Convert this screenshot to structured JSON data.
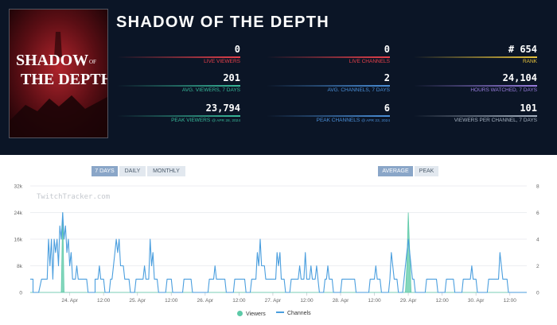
{
  "game": {
    "title": "SHADOW OF THE DEPTH",
    "cover": {
      "line1": "SHADOW",
      "of": "OF",
      "line2": "THE DEPTH"
    }
  },
  "stats": [
    {
      "value": "0",
      "label": "LIVE VIEWERS",
      "sub": "",
      "color": "#e8404a"
    },
    {
      "value": "0",
      "label": "LIVE CHANNELS",
      "sub": "",
      "color": "#e8404a"
    },
    {
      "value": "# 654",
      "label": "RANK",
      "sub": "",
      "color": "#e8c33c"
    },
    {
      "value": "201",
      "label": "AVG. VIEWERS, 7 DAYS",
      "sub": "",
      "color": "#38b99a"
    },
    {
      "value": "2",
      "label": "AVG. CHANNELS, 7 DAYS",
      "sub": "",
      "color": "#4a8fd8"
    },
    {
      "value": "24,104",
      "label": "HOURS WATCHED, 7 DAYS",
      "sub": "",
      "color": "#9a7ee0"
    },
    {
      "value": "23,794",
      "label": "PEAK VIEWERS",
      "sub": "@ APR 28, 2024",
      "color": "#38b99a"
    },
    {
      "value": "6",
      "label": "PEAK CHANNELS",
      "sub": "@ APR 23, 2024",
      "color": "#4a8fd8"
    },
    {
      "value": "101",
      "label": "VIEWERS PER CHANNEL, 7 DAYS",
      "sub": "",
      "color": "#a7b3c2"
    }
  ],
  "controls": {
    "range": [
      "7 DAYS",
      "DAILY",
      "MONTHLY"
    ],
    "range_active": "7 DAYS",
    "mode": [
      "AVERAGE",
      "PEAK"
    ],
    "mode_active": "AVERAGE"
  },
  "chart_data": {
    "type": "line",
    "watermark": "TwitchTracker.com",
    "x_ticks": [
      "24. Apr",
      "12:00",
      "25. Apr",
      "12:00",
      "26. Apr",
      "12:00",
      "27. Apr",
      "12:00",
      "28. Apr",
      "12:00",
      "29. Apr",
      "12:00",
      "30. Apr",
      "12:00"
    ],
    "x_tick_hours": [
      24,
      36,
      48,
      60,
      72,
      84,
      96,
      108,
      120,
      132,
      144,
      156,
      168,
      180
    ],
    "x_range_hours": [
      10,
      186
    ],
    "y_left": {
      "ticks": [
        "0",
        "8k",
        "16k",
        "24k",
        "32k"
      ],
      "range": [
        0,
        32000
      ]
    },
    "y_right": {
      "ticks": [
        "0",
        "2",
        "4",
        "6",
        "8"
      ],
      "range": [
        0,
        8
      ]
    },
    "series": [
      {
        "name": "Viewers",
        "color": "#5cc9a7",
        "points": [
          [
            10,
            0
          ],
          [
            21,
            0
          ],
          [
            21.5,
            24000
          ],
          [
            22,
            0
          ],
          [
            75,
            0
          ],
          [
            105,
            0
          ],
          [
            135,
            0
          ],
          [
            143,
            0
          ],
          [
            143.5,
            8000
          ],
          [
            144,
            24000
          ],
          [
            144.5,
            12000
          ],
          [
            145,
            0
          ],
          [
            186,
            0
          ]
        ]
      },
      {
        "name": "Channels",
        "color": "#4a9ede",
        "points": [
          [
            10,
            1
          ],
          [
            11,
            1
          ],
          [
            11,
            0
          ],
          [
            13,
            0
          ],
          [
            14,
            1
          ],
          [
            16,
            1
          ],
          [
            16.5,
            4
          ],
          [
            17,
            2
          ],
          [
            17.5,
            4
          ],
          [
            18,
            1
          ],
          [
            18.5,
            4
          ],
          [
            19,
            3
          ],
          [
            19.5,
            4
          ],
          [
            20,
            2
          ],
          [
            20.5,
            5
          ],
          [
            21,
            4
          ],
          [
            21.5,
            6
          ],
          [
            22,
            4
          ],
          [
            22.5,
            5
          ],
          [
            23,
            3
          ],
          [
            23.5,
            4
          ],
          [
            24,
            2
          ],
          [
            24.5,
            3
          ],
          [
            25,
            1
          ],
          [
            26,
            1
          ],
          [
            26.5,
            2
          ],
          [
            27,
            1
          ],
          [
            30,
            1
          ],
          [
            30.5,
            0
          ],
          [
            33,
            0
          ],
          [
            33,
            1
          ],
          [
            34,
            1
          ],
          [
            34.5,
            2
          ],
          [
            35,
            1
          ],
          [
            36,
            1
          ],
          [
            36.5,
            0
          ],
          [
            38,
            0
          ],
          [
            38.5,
            1
          ],
          [
            39,
            1
          ],
          [
            40,
            3
          ],
          [
            40.5,
            4
          ],
          [
            41,
            3
          ],
          [
            41.5,
            4
          ],
          [
            42,
            2
          ],
          [
            43,
            2
          ],
          [
            43.5,
            1
          ],
          [
            45,
            1
          ],
          [
            45.5,
            0
          ],
          [
            47,
            0
          ],
          [
            47.5,
            1
          ],
          [
            50,
            1
          ],
          [
            50.5,
            2
          ],
          [
            51,
            1
          ],
          [
            52,
            1
          ],
          [
            52.5,
            4
          ],
          [
            53,
            2
          ],
          [
            53.5,
            3
          ],
          [
            54,
            1
          ],
          [
            55,
            1
          ],
          [
            55.5,
            0
          ],
          [
            58,
            0
          ],
          [
            58.5,
            1
          ],
          [
            60,
            1
          ],
          [
            60.5,
            0
          ],
          [
            64,
            0
          ],
          [
            64.5,
            1
          ],
          [
            67,
            1
          ],
          [
            67.5,
            0
          ],
          [
            73,
            0
          ],
          [
            73.5,
            1
          ],
          [
            75,
            1
          ],
          [
            75.5,
            2
          ],
          [
            76,
            1
          ],
          [
            79,
            1
          ],
          [
            79.5,
            0
          ],
          [
            82,
            0
          ],
          [
            82.5,
            1
          ],
          [
            86,
            1
          ],
          [
            86.5,
            0
          ],
          [
            88,
            0
          ],
          [
            88.5,
            1
          ],
          [
            90,
            1
          ],
          [
            90.5,
            3
          ],
          [
            91,
            2
          ],
          [
            91.5,
            4
          ],
          [
            92,
            2
          ],
          [
            93,
            2
          ],
          [
            93.5,
            1
          ],
          [
            97,
            1
          ],
          [
            97.5,
            3
          ],
          [
            98,
            2
          ],
          [
            98.5,
            3
          ],
          [
            99,
            1
          ],
          [
            100,
            1
          ],
          [
            100.5,
            0
          ],
          [
            102,
            0
          ],
          [
            102.5,
            1
          ],
          [
            105,
            1
          ],
          [
            105.5,
            2
          ],
          [
            106,
            1
          ],
          [
            107,
            1
          ],
          [
            107.5,
            3
          ],
          [
            108,
            1
          ],
          [
            109,
            1
          ],
          [
            109.5,
            2
          ],
          [
            110,
            1
          ],
          [
            111,
            1
          ],
          [
            111.5,
            2
          ],
          [
            112,
            1
          ],
          [
            112.5,
            0
          ],
          [
            114,
            0
          ],
          [
            114.5,
            1
          ],
          [
            115,
            1
          ],
          [
            115.5,
            2
          ],
          [
            116,
            1
          ],
          [
            117,
            1
          ],
          [
            117.5,
            0
          ],
          [
            120,
            0
          ],
          [
            120.5,
            1
          ],
          [
            125,
            1
          ],
          [
            125.5,
            0
          ],
          [
            130,
            0
          ],
          [
            130.5,
            1
          ],
          [
            132,
            1
          ],
          [
            132.5,
            2
          ],
          [
            133,
            1
          ],
          [
            134,
            1
          ],
          [
            134.5,
            0
          ],
          [
            137,
            0
          ],
          [
            137.5,
            1
          ],
          [
            138,
            3
          ],
          [
            138.5,
            2
          ],
          [
            139,
            1
          ],
          [
            140,
            1
          ],
          [
            140.5,
            0
          ],
          [
            142,
            0
          ],
          [
            142.5,
            1
          ],
          [
            143,
            2
          ],
          [
            143.5,
            3
          ],
          [
            144,
            4
          ],
          [
            144.5,
            3
          ],
          [
            145,
            2
          ],
          [
            145.5,
            1
          ],
          [
            146,
            1
          ],
          [
            146.5,
            0
          ],
          [
            150,
            0
          ],
          [
            150.5,
            1
          ],
          [
            154,
            1
          ],
          [
            154.5,
            0
          ],
          [
            157,
            0
          ],
          [
            157.5,
            1
          ],
          [
            160,
            1
          ],
          [
            160.5,
            0
          ],
          [
            163,
            0
          ],
          [
            163.5,
            1
          ],
          [
            166,
            1
          ],
          [
            166.5,
            2
          ],
          [
            167,
            1
          ],
          [
            168,
            1
          ],
          [
            168.5,
            0
          ],
          [
            172,
            0
          ],
          [
            172.5,
            1
          ],
          [
            176,
            1
          ],
          [
            176.5,
            3
          ],
          [
            177,
            2
          ],
          [
            177.5,
            1
          ],
          [
            179,
            1
          ],
          [
            179.5,
            0
          ],
          [
            186,
            0
          ]
        ]
      }
    ]
  }
}
